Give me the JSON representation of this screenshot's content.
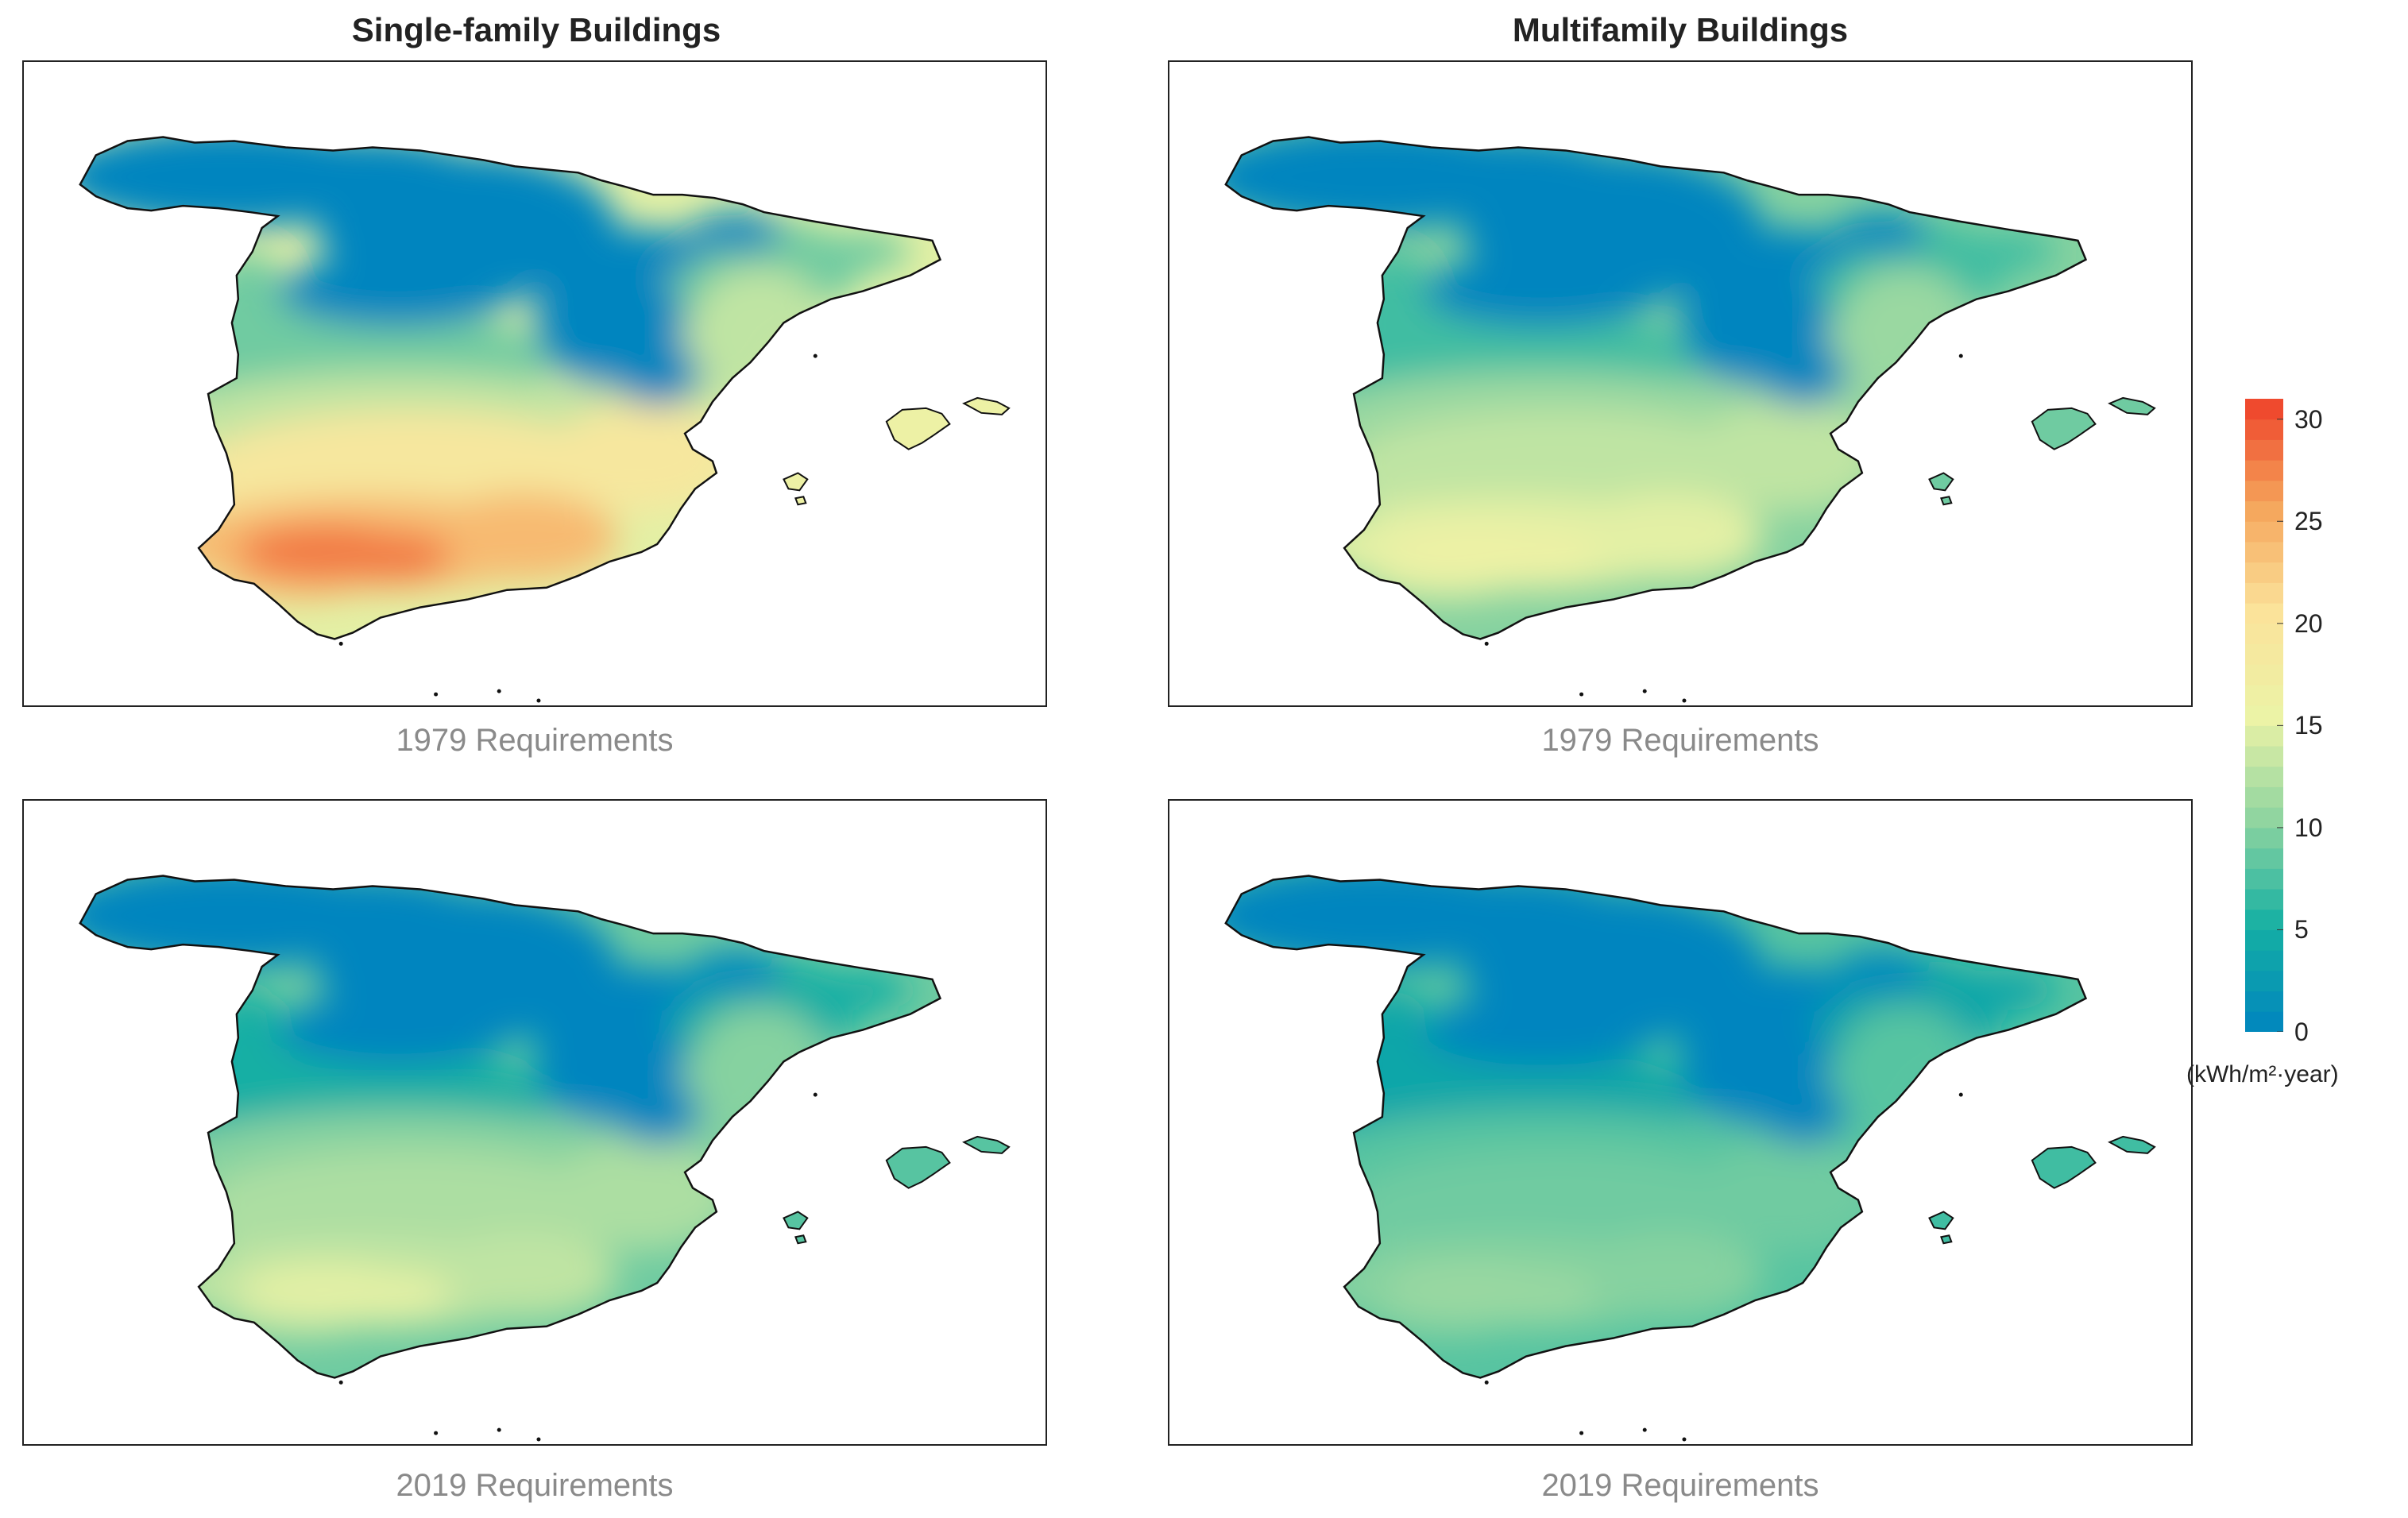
{
  "columns": [
    {
      "title": "Single-family Buildings"
    },
    {
      "title": "Multifamily Buildings"
    }
  ],
  "panels": [
    {
      "id": "sf-1979",
      "column": "Single-family Buildings",
      "caption": "1979 Requirements",
      "zones": {
        "north": 0,
        "upper": 9,
        "mid": 13,
        "center": 19,
        "south": 24,
        "southcore": 28,
        "coast": 15,
        "islands": 16
      }
    },
    {
      "id": "mf-1979",
      "column": "Multifamily Buildings",
      "caption": "1979 Requirements",
      "zones": {
        "north": 0,
        "upper": 7,
        "mid": 11,
        "center": 13,
        "south": 15,
        "southcore": 16,
        "coast": 10,
        "islands": 9
      }
    },
    {
      "id": "sf-2019",
      "column": "Single-family Buildings",
      "caption": "2019 Requirements",
      "zones": {
        "north": 0,
        "upper": 5,
        "mid": 10,
        "center": 12,
        "south": 13,
        "southcore": 15,
        "coast": 9,
        "islands": 8
      }
    },
    {
      "id": "mf-2019",
      "column": "Multifamily Buildings",
      "caption": "2019 Requirements",
      "zones": {
        "north": 0,
        "upper": 4,
        "mid": 8,
        "center": 9,
        "south": 10,
        "southcore": 11,
        "coast": 8,
        "islands": 7
      }
    }
  ],
  "colorbar": {
    "min": 0,
    "max": 31,
    "ticks": [
      "0",
      "5",
      "10",
      "15",
      "20",
      "25",
      "30"
    ],
    "unit_label": "(kWh/m²·year)",
    "stops": [
      "#0085bf",
      "#15b0a3",
      "#8ed4a0",
      "#ecf3a6",
      "#fbe29a",
      "#f5a45a",
      "#ee4029"
    ]
  }
}
